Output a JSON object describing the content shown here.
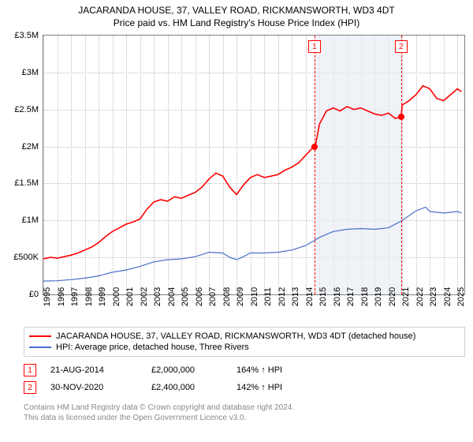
{
  "title": "JACARANDA HOUSE, 37, VALLEY ROAD, RICKMANSWORTH, WD3 4DT",
  "subtitle": "Price paid vs. HM Land Registry's House Price Index (HPI)",
  "chart": {
    "type": "line",
    "background_color": "#ffffff",
    "grid_color": "#c0c0c0",
    "border_color": "#808080",
    "xlim": [
      1995,
      2025.5
    ],
    "ylim": [
      0,
      3500000
    ],
    "yticks": [
      {
        "v": 0,
        "label": "£0"
      },
      {
        "v": 500000,
        "label": "£500K"
      },
      {
        "v": 1000000,
        "label": "£1M"
      },
      {
        "v": 1500000,
        "label": "£1.5M"
      },
      {
        "v": 2000000,
        "label": "£2M"
      },
      {
        "v": 2500000,
        "label": "£2.5M"
      },
      {
        "v": 3000000,
        "label": "£3M"
      },
      {
        "v": 3500000,
        "label": "£3.5M"
      }
    ],
    "xticks": [
      1995,
      1996,
      1997,
      1998,
      1999,
      2000,
      2001,
      2002,
      2003,
      2004,
      2005,
      2006,
      2007,
      2008,
      2009,
      2010,
      2011,
      2012,
      2013,
      2014,
      2015,
      2016,
      2017,
      2018,
      2019,
      2020,
      2021,
      2022,
      2023,
      2024,
      2025
    ],
    "shaded": {
      "from": 2014.64,
      "to": 2020.92,
      "color": "#e8ecf4"
    },
    "series": [
      {
        "name": "property",
        "label": "JACARANDA HOUSE, 37, VALLEY ROAD, RICKMANSWORTH, WD3 4DT (detached house)",
        "color": "#ff0000",
        "line_width": 1.6,
        "points": [
          [
            1995,
            480000
          ],
          [
            1995.5,
            500000
          ],
          [
            1996,
            490000
          ],
          [
            1996.5,
            510000
          ],
          [
            1997,
            530000
          ],
          [
            1997.5,
            560000
          ],
          [
            1998,
            600000
          ],
          [
            1998.5,
            640000
          ],
          [
            1999,
            700000
          ],
          [
            1999.5,
            780000
          ],
          [
            2000,
            850000
          ],
          [
            2000.5,
            900000
          ],
          [
            2001,
            950000
          ],
          [
            2001.5,
            980000
          ],
          [
            2002,
            1020000
          ],
          [
            2002.5,
            1150000
          ],
          [
            2003,
            1250000
          ],
          [
            2003.5,
            1280000
          ],
          [
            2004,
            1260000
          ],
          [
            2004.5,
            1320000
          ],
          [
            2005,
            1300000
          ],
          [
            2005.5,
            1340000
          ],
          [
            2006,
            1380000
          ],
          [
            2006.5,
            1450000
          ],
          [
            2007,
            1560000
          ],
          [
            2007.5,
            1640000
          ],
          [
            2008,
            1600000
          ],
          [
            2008.5,
            1450000
          ],
          [
            2009,
            1350000
          ],
          [
            2009.5,
            1480000
          ],
          [
            2010,
            1580000
          ],
          [
            2010.5,
            1620000
          ],
          [
            2011,
            1580000
          ],
          [
            2011.5,
            1600000
          ],
          [
            2012,
            1620000
          ],
          [
            2012.5,
            1680000
          ],
          [
            2013,
            1720000
          ],
          [
            2013.5,
            1780000
          ],
          [
            2014,
            1880000
          ],
          [
            2014.5,
            1980000
          ],
          [
            2014.75,
            2050000
          ],
          [
            2015,
            2300000
          ],
          [
            2015.5,
            2480000
          ],
          [
            2016,
            2520000
          ],
          [
            2016.5,
            2480000
          ],
          [
            2017,
            2540000
          ],
          [
            2017.5,
            2500000
          ],
          [
            2018,
            2520000
          ],
          [
            2018.5,
            2480000
          ],
          [
            2019,
            2440000
          ],
          [
            2019.5,
            2420000
          ],
          [
            2020,
            2450000
          ],
          [
            2020.5,
            2380000
          ],
          [
            2020.92,
            2400000
          ],
          [
            2021,
            2560000
          ],
          [
            2021.5,
            2620000
          ],
          [
            2022,
            2700000
          ],
          [
            2022.5,
            2820000
          ],
          [
            2023,
            2780000
          ],
          [
            2023.5,
            2650000
          ],
          [
            2024,
            2620000
          ],
          [
            2024.5,
            2700000
          ],
          [
            2025,
            2780000
          ],
          [
            2025.3,
            2740000
          ]
        ]
      },
      {
        "name": "hpi",
        "label": "HPI: Average price, detached house, Three Rivers",
        "color": "#4a6fc8",
        "line_width": 1.2,
        "points": [
          [
            1995,
            180000
          ],
          [
            1996,
            185000
          ],
          [
            1997,
            200000
          ],
          [
            1998,
            220000
          ],
          [
            1999,
            250000
          ],
          [
            2000,
            300000
          ],
          [
            2001,
            330000
          ],
          [
            2002,
            380000
          ],
          [
            2003,
            440000
          ],
          [
            2004,
            470000
          ],
          [
            2005,
            480000
          ],
          [
            2006,
            510000
          ],
          [
            2007,
            570000
          ],
          [
            2008,
            560000
          ],
          [
            2008.5,
            500000
          ],
          [
            2009,
            470000
          ],
          [
            2009.5,
            510000
          ],
          [
            2010,
            560000
          ],
          [
            2011,
            560000
          ],
          [
            2012,
            570000
          ],
          [
            2013,
            600000
          ],
          [
            2014,
            660000
          ],
          [
            2015,
            770000
          ],
          [
            2016,
            850000
          ],
          [
            2017,
            880000
          ],
          [
            2018,
            890000
          ],
          [
            2019,
            880000
          ],
          [
            2020,
            900000
          ],
          [
            2021,
            1000000
          ],
          [
            2022,
            1130000
          ],
          [
            2022.7,
            1180000
          ],
          [
            2023,
            1120000
          ],
          [
            2024,
            1100000
          ],
          [
            2025,
            1120000
          ],
          [
            2025.3,
            1100000
          ]
        ]
      }
    ],
    "markers": [
      {
        "idx": "1",
        "x": 2014.64,
        "y": 2000000,
        "label_y": 80000
      },
      {
        "idx": "2",
        "x": 2020.92,
        "y": 2400000,
        "label_y": 80000
      }
    ]
  },
  "legend_header": null,
  "sales": [
    {
      "idx": "1",
      "date": "21-AUG-2014",
      "price": "£2,000,000",
      "pct": "164% ↑ HPI"
    },
    {
      "idx": "2",
      "date": "30-NOV-2020",
      "price": "£2,400,000",
      "pct": "142% ↑ HPI"
    }
  ],
  "footer_line1": "Contains HM Land Registry data © Crown copyright and database right 2024.",
  "footer_line2": "This data is licensed under the Open Government Licence v3.0."
}
